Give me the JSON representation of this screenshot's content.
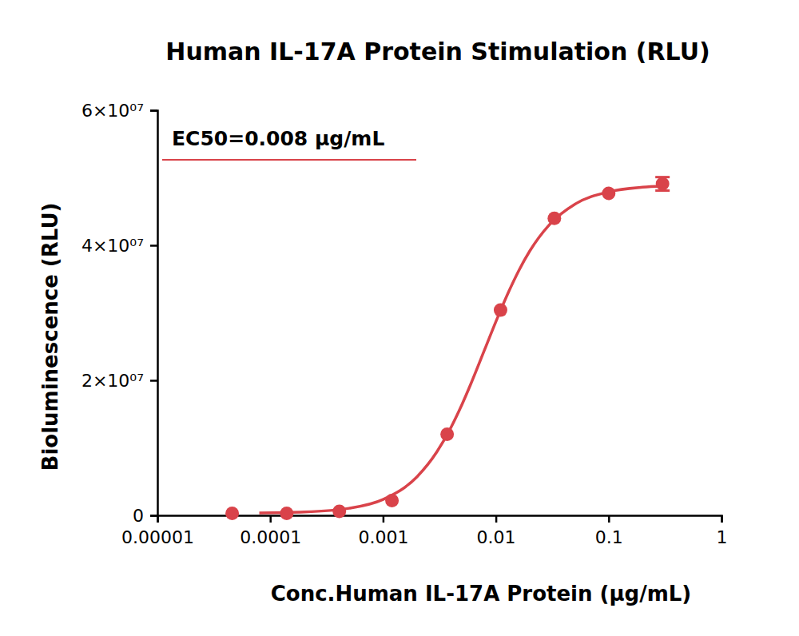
{
  "chart_data": {
    "type": "scatter",
    "title": "Human IL-17A Protein Stimulation (RLU)",
    "xlabel": "Conc.Human IL-17A Protein (μg/mL)",
    "ylabel": "Bioluminescence (RLU)",
    "annotation": "EC50=0.008 μg/mL",
    "log": "x",
    "xlim": [
      1e-05,
      1
    ],
    "xticks": [
      1e-05,
      0.0001,
      0.001,
      0.01,
      0.1,
      1
    ],
    "ylim": [
      0,
      60000000
    ],
    "yticks": [
      0,
      {
        "value": 20000000,
        "label": "2×10⁰⁷"
      },
      {
        "value": 40000000,
        "label": "4×10⁰⁷"
      },
      {
        "value": 60000000,
        "label": "6×10⁰⁷"
      }
    ],
    "series": [
      {
        "type": "scatter",
        "color": "#d9434a",
        "marker": "circle",
        "x": [
          4.6e-05,
          0.00014,
          0.00041,
          0.0012,
          0.0037,
          0.011,
          0.033,
          0.1,
          0.3
        ],
        "values": [
          300000,
          300000,
          600000,
          2200000,
          12000000,
          30400000,
          44000000,
          47700000,
          49100000
        ],
        "errors": [
          0,
          0,
          0,
          0,
          0,
          0,
          0,
          0,
          1000000
        ]
      },
      {
        "type": "line",
        "color": "#d9434a",
        "line_style": "solid",
        "x": [
          8e-05,
          0.0002,
          0.0005,
          0.001,
          0.002,
          0.003,
          0.004,
          0.005,
          0.006,
          0.008,
          0.01,
          0.013,
          0.016,
          0.02,
          0.03,
          0.05,
          0.1,
          0.2,
          0.3
        ],
        "values": [
          350000,
          490000,
          1050000,
          2360000,
          5710000,
          9400000,
          13020000,
          16400000,
          19470000,
          24650000,
          28690000,
          33140000,
          36280000,
          39170000,
          43100000,
          46070000,
          47930000,
          48610000,
          48790000
        ]
      }
    ]
  }
}
